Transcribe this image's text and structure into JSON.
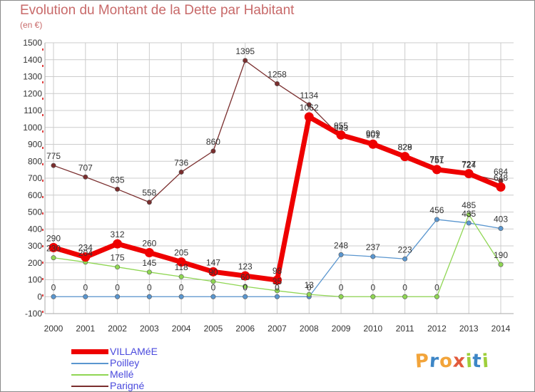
{
  "header": {
    "title": "Evolution du Montant de la Dette par Habitant",
    "unit": "(en €)"
  },
  "logo": {
    "text": "Proxiti",
    "colors": [
      "#f2a43a",
      "#3d86c6",
      "#f2a43a",
      "#e25a3c",
      "#9fcf3b",
      "#3d86c6",
      "#9fcf3b"
    ]
  },
  "chart_data": {
    "type": "line",
    "x": [
      2000,
      2001,
      2002,
      2003,
      2004,
      2005,
      2006,
      2007,
      2008,
      2009,
      2010,
      2011,
      2012,
      2013,
      2014
    ],
    "ylim": [
      -100,
      1500
    ],
    "yticks": [
      -100,
      0,
      100,
      200,
      300,
      400,
      500,
      600,
      700,
      800,
      900,
      1000,
      1100,
      1200,
      1300,
      1400,
      1500
    ],
    "grid": true,
    "legend_position": "bottom-left",
    "series": [
      {
        "name": "VILLAMéE",
        "color": "#ee0000",
        "emphasis": true,
        "values": [
          290,
          234,
          312,
          260,
          205,
          147,
          123,
          98,
          1062,
          955,
          901,
          828,
          751,
          727,
          648
        ],
        "labels": [
          "290",
          "234",
          "312",
          "260",
          "205",
          "147",
          "123",
          "98",
          "1062",
          "955",
          "901",
          "828",
          "751",
          "727",
          "648"
        ]
      },
      {
        "name": "Poilley",
        "color": "#5a96cf",
        "values": [
          0,
          0,
          0,
          0,
          0,
          0,
          0,
          0,
          0,
          248,
          237,
          223,
          456,
          435,
          403
        ],
        "labels": [
          "0",
          "0",
          "0",
          "0",
          "0",
          "0",
          "0",
          "0",
          "0",
          "248",
          "237",
          "223",
          "456",
          "435",
          "403"
        ]
      },
      {
        "name": "Mellé",
        "color": "#8fd653",
        "values": [
          230,
          204,
          175,
          145,
          118,
          90,
          60,
          35,
          13,
          0,
          0,
          0,
          0,
          485,
          190
        ],
        "labels": [
          "230",
          "204",
          "175",
          "145",
          "118",
          "90",
          "60",
          "35",
          "13",
          "0",
          "0",
          "0",
          "0",
          "485",
          "190"
        ]
      },
      {
        "name": "Parigné",
        "color": "#7a2e2e",
        "values": [
          775,
          707,
          635,
          558,
          736,
          860,
          1395,
          1258,
          1134,
          943,
          909,
          829,
          757,
          724,
          684
        ],
        "labels": [
          "775",
          "707",
          "635",
          "558",
          "736",
          "860",
          "1395",
          "1258",
          "1134",
          "943",
          "909",
          "829",
          "757",
          "724",
          "684"
        ]
      }
    ]
  }
}
